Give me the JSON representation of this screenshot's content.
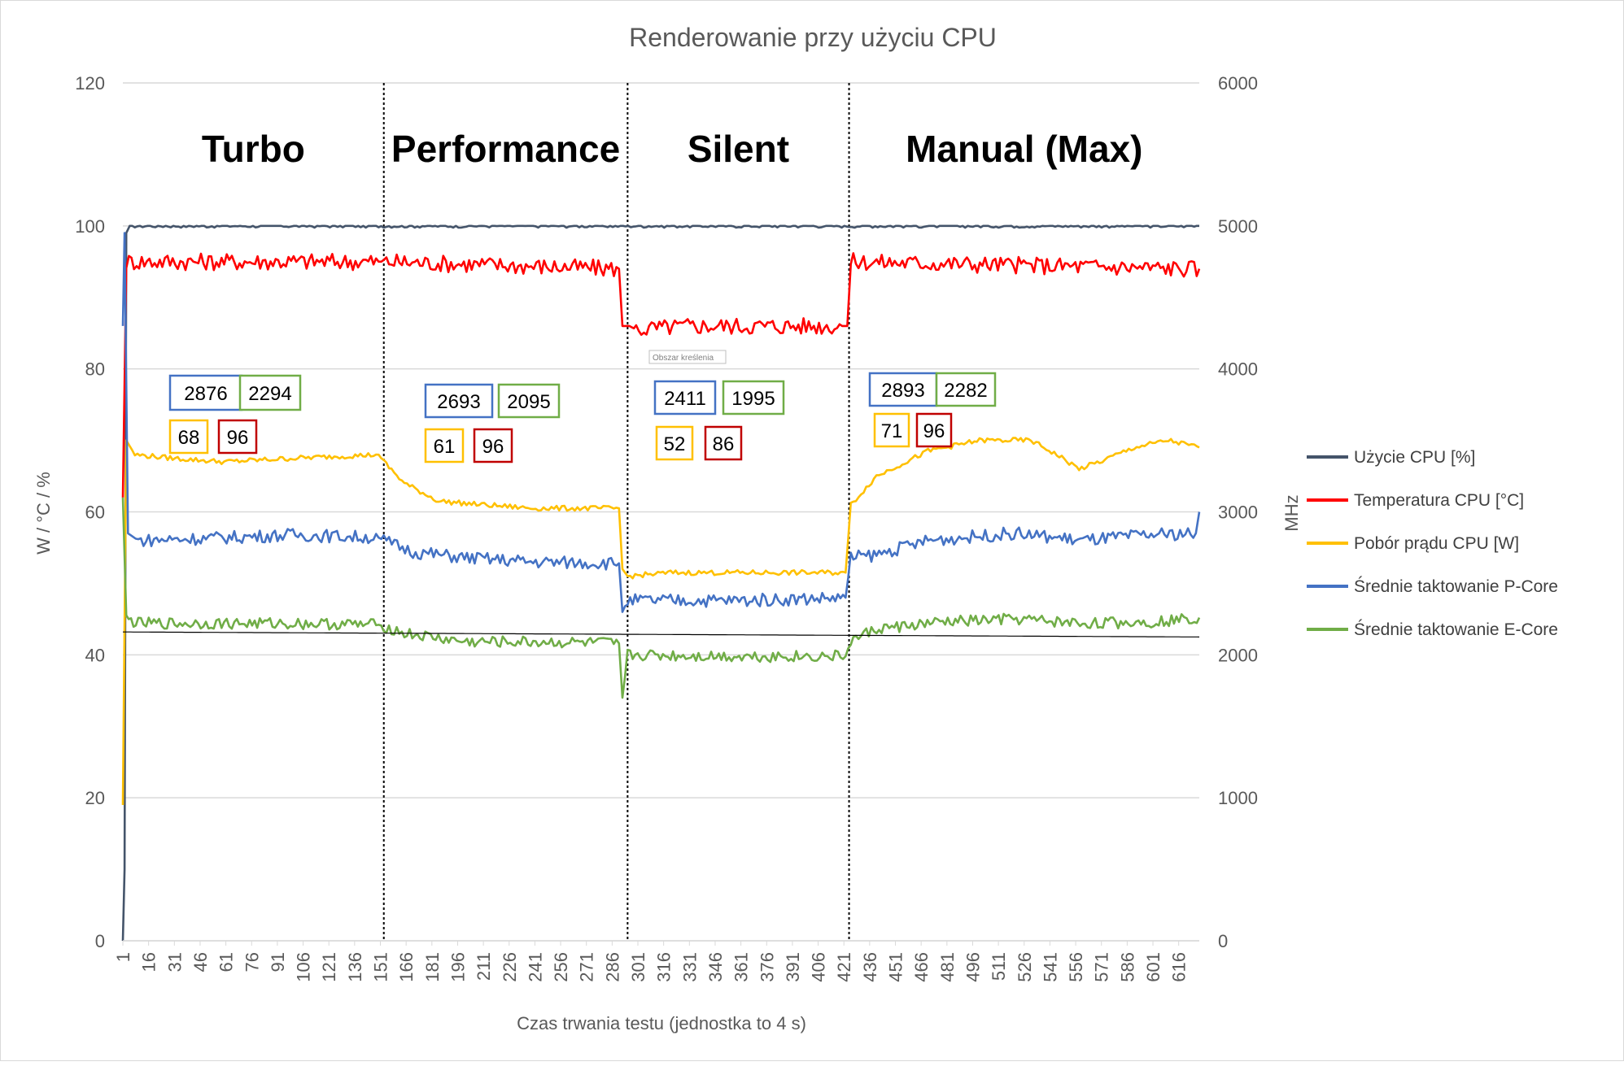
{
  "chart_data": {
    "type": "line",
    "title": "Renderowanie przy użyciu CPU",
    "xlabel": "Czas trwania testu (jednostka to 4 s)",
    "ylabel": "W / °C / %",
    "y2label": "MHz",
    "ylim": [
      0,
      120
    ],
    "y2lim": [
      0,
      6000
    ],
    "y_ticks": [
      "0",
      "20",
      "40",
      "60",
      "80",
      "100",
      "120"
    ],
    "y2_ticks": [
      "0",
      "1000",
      "2000",
      "3000",
      "4000",
      "5000",
      "6000"
    ],
    "x_ticks": [
      "1",
      "16",
      "31",
      "46",
      "61",
      "76",
      "91",
      "106",
      "121",
      "136",
      "151",
      "166",
      "181",
      "196",
      "211",
      "226",
      "241",
      "256",
      "271",
      "286",
      "301",
      "316",
      "331",
      "346",
      "361",
      "376",
      "391",
      "406",
      "421",
      "436",
      "451",
      "466",
      "481",
      "496",
      "511",
      "526",
      "541",
      "556",
      "571",
      "586",
      "601",
      "616"
    ],
    "xlim": [
      1,
      628
    ],
    "grid": true,
    "legend_position": "right",
    "modes": [
      {
        "label": "Turbo",
        "x_start": 1,
        "x_end": 153
      },
      {
        "label": "Performance",
        "x_start": 153,
        "x_end": 295
      },
      {
        "label": "Silent",
        "x_start": 295,
        "x_end": 424
      },
      {
        "label": "Manual (Max)",
        "x_start": 424,
        "x_end": 628
      }
    ],
    "series": [
      {
        "name": "Użycie CPU [%]",
        "axis": "left",
        "color": "#44546a",
        "points": [
          [
            1,
            0
          ],
          [
            2,
            10
          ],
          [
            3,
            99
          ],
          [
            5,
            100
          ],
          [
            153,
            100
          ],
          [
            628,
            100
          ]
        ]
      },
      {
        "name": "Temperatura CPU [°C]",
        "axis": "left",
        "color": "#ff0000",
        "points": [
          [
            1,
            62
          ],
          [
            3,
            95
          ],
          [
            150,
            95
          ],
          [
            153,
            95
          ],
          [
            290,
            94
          ],
          [
            292,
            86
          ],
          [
            296,
            86
          ],
          [
            300,
            85.5
          ],
          [
            330,
            86
          ],
          [
            420,
            86
          ],
          [
            423,
            86
          ],
          [
            425,
            95
          ],
          [
            628,
            94
          ]
        ]
      },
      {
        "name": "Pobór prądu CPU [W]",
        "axis": "left",
        "color": "#ffc000",
        "points": [
          [
            1,
            19
          ],
          [
            3,
            70
          ],
          [
            8,
            68
          ],
          [
            30,
            67.5
          ],
          [
            60,
            67
          ],
          [
            100,
            67.5
          ],
          [
            150,
            68
          ],
          [
            153,
            67
          ],
          [
            165,
            64
          ],
          [
            185,
            61.5
          ],
          [
            210,
            61
          ],
          [
            240,
            60.5
          ],
          [
            290,
            60.5
          ],
          [
            292,
            52
          ],
          [
            295,
            51
          ],
          [
            320,
            51.5
          ],
          [
            350,
            51.5
          ],
          [
            380,
            51.5
          ],
          [
            422,
            51.5
          ],
          [
            425,
            61
          ],
          [
            440,
            65
          ],
          [
            470,
            68.5
          ],
          [
            500,
            70
          ],
          [
            530,
            70
          ],
          [
            545,
            68
          ],
          [
            558,
            66
          ],
          [
            570,
            67
          ],
          [
            590,
            69
          ],
          [
            610,
            70
          ],
          [
            628,
            69
          ]
        ]
      },
      {
        "name": "Średnie taktowanie P-Core",
        "axis": "right",
        "color": "#4472c4",
        "points": [
          [
            1,
            4300
          ],
          [
            2,
            4950
          ],
          [
            4,
            2850
          ],
          [
            10,
            2800
          ],
          [
            60,
            2820
          ],
          [
            100,
            2840
          ],
          [
            150,
            2820
          ],
          [
            153,
            2800
          ],
          [
            170,
            2720
          ],
          [
            200,
            2680
          ],
          [
            240,
            2650
          ],
          [
            290,
            2640
          ],
          [
            292,
            2300
          ],
          [
            295,
            2380
          ],
          [
            320,
            2380
          ],
          [
            360,
            2380
          ],
          [
            422,
            2400
          ],
          [
            425,
            2680
          ],
          [
            440,
            2700
          ],
          [
            470,
            2800
          ],
          [
            520,
            2850
          ],
          [
            560,
            2800
          ],
          [
            600,
            2840
          ],
          [
            626,
            2850
          ],
          [
            628,
            3000
          ]
        ]
      },
      {
        "name": "Średnie taktowanie E-Core",
        "axis": "right",
        "color": "#70ad47",
        "points": [
          [
            1,
            3100
          ],
          [
            3,
            2250
          ],
          [
            10,
            2220
          ],
          [
            60,
            2220
          ],
          [
            100,
            2220
          ],
          [
            150,
            2210
          ],
          [
            153,
            2200
          ],
          [
            165,
            2150
          ],
          [
            200,
            2090
          ],
          [
            240,
            2090
          ],
          [
            290,
            2080
          ],
          [
            292,
            1700
          ],
          [
            295,
            2000
          ],
          [
            320,
            1995
          ],
          [
            360,
            1990
          ],
          [
            422,
            1990
          ],
          [
            425,
            2100
          ],
          [
            440,
            2180
          ],
          [
            480,
            2230
          ],
          [
            520,
            2250
          ],
          [
            560,
            2220
          ],
          [
            600,
            2230
          ],
          [
            628,
            2260
          ]
        ]
      },
      {
        "name": "",
        "axis": "left",
        "color": "#000000",
        "points": [
          [
            1,
            43.2
          ],
          [
            628,
            42.5
          ]
        ]
      }
    ],
    "annotations": [
      {
        "text": "2876",
        "color": "#4472c4",
        "mode": "Turbo"
      },
      {
        "text": "2294",
        "color": "#70ad47",
        "mode": "Turbo"
      },
      {
        "text": "68",
        "color": "#ffc000",
        "mode": "Turbo"
      },
      {
        "text": "96",
        "color": "#c00000",
        "mode": "Turbo"
      },
      {
        "text": "2693",
        "color": "#4472c4",
        "mode": "Performance"
      },
      {
        "text": "2095",
        "color": "#70ad47",
        "mode": "Performance"
      },
      {
        "text": "61",
        "color": "#ffc000",
        "mode": "Performance"
      },
      {
        "text": "96",
        "color": "#c00000",
        "mode": "Performance"
      },
      {
        "text": "2411",
        "color": "#4472c4",
        "mode": "Silent"
      },
      {
        "text": "1995",
        "color": "#70ad47",
        "mode": "Silent"
      },
      {
        "text": "52",
        "color": "#ffc000",
        "mode": "Silent"
      },
      {
        "text": "86",
        "color": "#c00000",
        "mode": "Silent"
      },
      {
        "text": "2893",
        "color": "#4472c4",
        "mode": "Manual (Max)"
      },
      {
        "text": "2282",
        "color": "#70ad47",
        "mode": "Manual (Max)"
      },
      {
        "text": "71",
        "color": "#ffc000",
        "mode": "Manual (Max)"
      },
      {
        "text": "96",
        "color": "#c00000",
        "mode": "Manual (Max)"
      }
    ],
    "tooltip": "Obszar kreślenia"
  }
}
